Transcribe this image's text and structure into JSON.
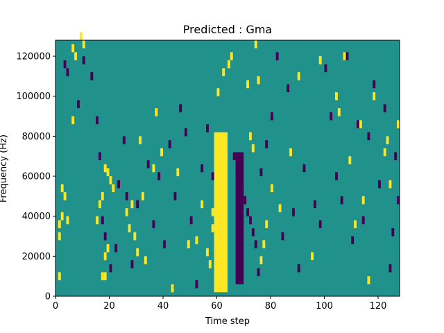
{
  "chart_data": {
    "type": "heatmap",
    "title": "Predicted : Gma",
    "xlabel": "Time step",
    "ylabel": "Frequency (Hz)",
    "xlim": [
      0,
      128
    ],
    "ylim": [
      0,
      128000
    ],
    "x_ticks": [
      0,
      20,
      40,
      60,
      80,
      100,
      120
    ],
    "y_ticks": [
      0,
      20000,
      40000,
      60000,
      80000,
      100000,
      120000
    ],
    "x_tick_labels": [
      "0",
      "20",
      "40",
      "60",
      "80",
      "100",
      "120"
    ],
    "y_tick_labels": [
      "0",
      "20000",
      "40000",
      "60000",
      "80000",
      "100000",
      "120000"
    ],
    "colormap": "viridis",
    "colors": {
      "background": "#21918c",
      "high": "#fde725",
      "low": "#440154"
    },
    "high_cells": [
      [
        1,
        8000
      ],
      [
        1,
        28000
      ],
      [
        1,
        34000
      ],
      [
        2,
        38000
      ],
      [
        2,
        52000
      ],
      [
        3,
        48000
      ],
      [
        4,
        36000
      ],
      [
        6,
        86000
      ],
      [
        6,
        122000
      ],
      [
        7,
        118000
      ],
      [
        9,
        128000
      ],
      [
        10,
        124000
      ],
      [
        15,
        36000
      ],
      [
        16,
        44000
      ],
      [
        17,
        48000
      ],
      [
        18,
        18000
      ],
      [
        19,
        22000
      ],
      [
        18,
        62000
      ],
      [
        19,
        60000
      ],
      [
        20,
        56000
      ],
      [
        21,
        52000
      ],
      [
        17,
        8000
      ],
      [
        18,
        8000
      ],
      [
        26,
        40000
      ],
      [
        27,
        32000
      ],
      [
        28,
        44000
      ],
      [
        29,
        28000
      ],
      [
        30,
        20000
      ],
      [
        31,
        76000
      ],
      [
        32,
        48000
      ],
      [
        33,
        16000
      ],
      [
        36,
        62000
      ],
      [
        37,
        90000
      ],
      [
        39,
        70000
      ],
      [
        43,
        2000
      ],
      [
        45,
        60000
      ],
      [
        49,
        24000
      ],
      [
        52,
        26000
      ],
      [
        54,
        44000
      ],
      [
        56,
        20000
      ],
      [
        57,
        14000
      ],
      [
        58,
        40000
      ],
      [
        58,
        32000
      ],
      [
        59,
        20000
      ],
      [
        60,
        100000
      ],
      [
        62,
        110000
      ],
      [
        64,
        114000
      ],
      [
        65,
        118000
      ],
      [
        71,
        104000
      ],
      [
        72,
        78000
      ],
      [
        73,
        72000
      ],
      [
        74,
        124000
      ],
      [
        75,
        106000
      ],
      [
        76,
        16000
      ],
      [
        77,
        24000
      ],
      [
        78,
        34000
      ],
      [
        80,
        52000
      ],
      [
        83,
        42000
      ],
      [
        87,
        70000
      ],
      [
        90,
        108000
      ],
      [
        95,
        18000
      ],
      [
        98,
        116000
      ],
      [
        104,
        98000
      ],
      [
        105,
        90000
      ],
      [
        107,
        118000
      ],
      [
        109,
        66000
      ],
      [
        111,
        34000
      ],
      [
        113,
        84000
      ],
      [
        114,
        46000
      ],
      [
        116,
        6000
      ],
      [
        118,
        98000
      ],
      [
        122,
        70000
      ],
      [
        123,
        76000
      ],
      [
        124,
        54000
      ],
      [
        127,
        84000
      ]
    ],
    "low_cells": [
      [
        3,
        114000
      ],
      [
        4,
        110000
      ],
      [
        8,
        94000
      ],
      [
        10,
        116000
      ],
      [
        13,
        108000
      ],
      [
        15,
        86000
      ],
      [
        16,
        68000
      ],
      [
        17,
        36000
      ],
      [
        18,
        28000
      ],
      [
        20,
        12000
      ],
      [
        22,
        22000
      ],
      [
        23,
        54000
      ],
      [
        25,
        76000
      ],
      [
        26,
        48000
      ],
      [
        28,
        14000
      ],
      [
        30,
        44000
      ],
      [
        34,
        64000
      ],
      [
        36,
        34000
      ],
      [
        38,
        58000
      ],
      [
        40,
        24000
      ],
      [
        42,
        74000
      ],
      [
        44,
        48000
      ],
      [
        46,
        92000
      ],
      [
        48,
        80000
      ],
      [
        50,
        36000
      ],
      [
        52,
        4000
      ],
      [
        54,
        62000
      ],
      [
        56,
        82000
      ],
      [
        58,
        58000
      ],
      [
        66,
        68000
      ],
      [
        67,
        62000
      ],
      [
        68,
        58000
      ],
      [
        69,
        50000
      ],
      [
        70,
        46000
      ],
      [
        71,
        40000
      ],
      [
        72,
        36000
      ],
      [
        73,
        30000
      ],
      [
        74,
        24000
      ],
      [
        75,
        10000
      ],
      [
        76,
        60000
      ],
      [
        78,
        74000
      ],
      [
        80,
        88000
      ],
      [
        82,
        118000
      ],
      [
        84,
        28000
      ],
      [
        86,
        102000
      ],
      [
        88,
        40000
      ],
      [
        90,
        12000
      ],
      [
        92,
        62000
      ],
      [
        96,
        44000
      ],
      [
        98,
        34000
      ],
      [
        100,
        112000
      ],
      [
        102,
        88000
      ],
      [
        104,
        58000
      ],
      [
        106,
        46000
      ],
      [
        108,
        118000
      ],
      [
        110,
        26000
      ],
      [
        112,
        84000
      ],
      [
        114,
        36000
      ],
      [
        116,
        78000
      ],
      [
        118,
        104000
      ],
      [
        120,
        54000
      ],
      [
        122,
        92000
      ],
      [
        124,
        12000
      ],
      [
        125,
        30000
      ],
      [
        126,
        68000
      ],
      [
        127,
        46000
      ]
    ],
    "high_band": {
      "x": [
        59,
        64
      ],
      "ylim": [
        2000,
        82000
      ]
    },
    "low_band": {
      "x": [
        67,
        70
      ],
      "ylim": [
        6000,
        72000
      ]
    }
  }
}
